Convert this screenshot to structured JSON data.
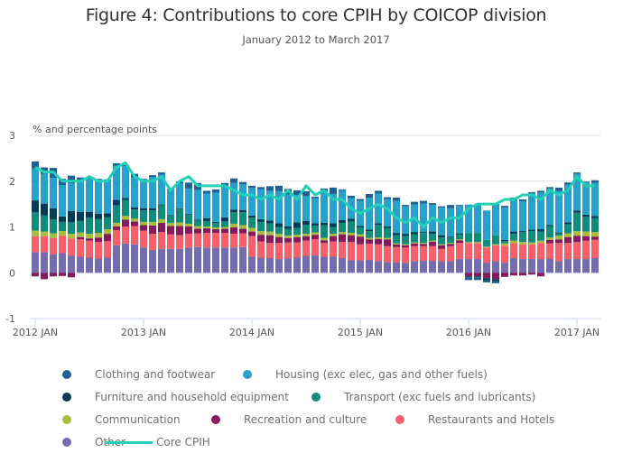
{
  "chart_data": {
    "type": "bar",
    "stacked": true,
    "title": "Figure 4: Contributions to core CPIH by COICOP division",
    "subtitle": "January 2012 to March 2017",
    "ylabel": "% and percentage points",
    "xlabel": "",
    "ylim": [
      -1,
      3
    ],
    "yticks": [
      -1,
      0,
      1,
      2,
      3
    ],
    "xtick_labels": [
      "2012 JAN",
      "2013 JAN",
      "2014 JAN",
      "2015 JAN",
      "2016 JAN",
      "2017 JAN"
    ],
    "xtick_indices": [
      0,
      12,
      24,
      36,
      48,
      60
    ],
    "grid": true,
    "legend_position": "bottom",
    "categories": [
      "2012 JAN",
      "2012 FEB",
      "2012 MAR",
      "2012 APR",
      "2012 MAY",
      "2012 JUN",
      "2012 JUL",
      "2012 AUG",
      "2012 SEP",
      "2012 OCT",
      "2012 NOV",
      "2012 DEC",
      "2013 JAN",
      "2013 FEB",
      "2013 MAR",
      "2013 APR",
      "2013 MAY",
      "2013 JUN",
      "2013 JUL",
      "2013 AUG",
      "2013 SEP",
      "2013 OCT",
      "2013 NOV",
      "2013 DEC",
      "2014 JAN",
      "2014 FEB",
      "2014 MAR",
      "2014 APR",
      "2014 MAY",
      "2014 JUN",
      "2014 JUL",
      "2014 AUG",
      "2014 SEP",
      "2014 OCT",
      "2014 NOV",
      "2014 DEC",
      "2015 JAN",
      "2015 FEB",
      "2015 MAR",
      "2015 APR",
      "2015 MAY",
      "2015 JUN",
      "2015 JUL",
      "2015 AUG",
      "2015 SEP",
      "2015 OCT",
      "2015 NOV",
      "2015 DEC",
      "2016 JAN",
      "2016 FEB",
      "2016 MAR",
      "2016 APR",
      "2016 MAY",
      "2016 JUN",
      "2016 JUL",
      "2016 AUG",
      "2016 SEP",
      "2016 OCT",
      "2016 NOV",
      "2016 DEC",
      "2017 JAN",
      "2017 FEB",
      "2017 MAR"
    ],
    "series": [
      {
        "name": "Other",
        "color": "#746cb1",
        "values": [
          0.45,
          0.45,
          0.4,
          0.43,
          0.37,
          0.35,
          0.33,
          0.31,
          0.33,
          0.6,
          0.64,
          0.62,
          0.55,
          0.5,
          0.52,
          0.52,
          0.52,
          0.55,
          0.56,
          0.55,
          0.55,
          0.55,
          0.55,
          0.56,
          0.35,
          0.33,
          0.32,
          0.3,
          0.31,
          0.33,
          0.37,
          0.38,
          0.35,
          0.35,
          0.32,
          0.27,
          0.27,
          0.28,
          0.25,
          0.23,
          0.23,
          0.22,
          0.25,
          0.26,
          0.26,
          0.25,
          0.25,
          0.3,
          0.3,
          0.3,
          0.22,
          0.25,
          0.22,
          0.32,
          0.3,
          0.3,
          0.3,
          0.31,
          0.25,
          0.3,
          0.3,
          0.3,
          0.32
        ]
      },
      {
        "name": "Restaurants and Hotels",
        "color": "#f66068",
        "values": [
          0.35,
          0.35,
          0.36,
          0.38,
          0.38,
          0.38,
          0.37,
          0.36,
          0.36,
          0.33,
          0.37,
          0.4,
          0.37,
          0.35,
          0.37,
          0.32,
          0.3,
          0.3,
          0.3,
          0.32,
          0.32,
          0.32,
          0.3,
          0.3,
          0.45,
          0.35,
          0.33,
          0.35,
          0.35,
          0.33,
          0.33,
          0.35,
          0.3,
          0.33,
          0.35,
          0.4,
          0.35,
          0.35,
          0.37,
          0.35,
          0.33,
          0.33,
          0.33,
          0.32,
          0.32,
          0.27,
          0.33,
          0.35,
          0.35,
          0.35,
          0.33,
          0.35,
          0.37,
          0.33,
          0.32,
          0.32,
          0.35,
          0.33,
          0.4,
          0.35,
          0.37,
          0.4,
          0.4
        ]
      },
      {
        "name": "Recreation and culture",
        "color": "#871a5b",
        "values": [
          -0.08,
          -0.14,
          -0.08,
          -0.07,
          -0.1,
          0.05,
          0.05,
          0.1,
          0.16,
          0.08,
          0.15,
          0.1,
          0.12,
          0.18,
          0.2,
          0.18,
          0.2,
          0.16,
          0.1,
          0.1,
          0.08,
          0.09,
          0.14,
          0.1,
          0.1,
          0.15,
          0.17,
          0.13,
          0.1,
          0.12,
          0.1,
          0.1,
          0.06,
          0.12,
          0.17,
          0.15,
          0.17,
          0.1,
          0.12,
          0.15,
          0.06,
          0.05,
          0.06,
          0.05,
          0.1,
          0.08,
          0.05,
          0.06,
          -0.08,
          -0.08,
          -0.12,
          -0.14,
          -0.09,
          -0.06,
          -0.06,
          -0.04,
          -0.08,
          0.08,
          0.08,
          0.13,
          0.14,
          0.1,
          0.07
        ]
      },
      {
        "name": "Communication",
        "color": "#a8bd3a",
        "values": [
          0.12,
          0.1,
          0.1,
          0.1,
          0.1,
          0.1,
          0.1,
          0.1,
          0.1,
          0.08,
          0.08,
          0.06,
          0.07,
          0.08,
          0.08,
          0.07,
          0.08,
          0.06,
          0.06,
          0.04,
          0.04,
          0.04,
          0.08,
          0.08,
          0.08,
          0.08,
          0.08,
          0.07,
          0.05,
          0.05,
          0.05,
          0.05,
          0.05,
          0.05,
          0.05,
          0.05,
          0.05,
          0.03,
          0.03,
          0.03,
          0.02,
          0.02,
          0.02,
          0.02,
          0.02,
          0.02,
          0.02,
          0.02,
          0.02,
          0.02,
          0.02,
          0.02,
          0.05,
          0.05,
          0.05,
          0.04,
          0.05,
          0.05,
          0.08,
          0.08,
          0.1,
          0.1,
          0.1
        ]
      },
      {
        "name": "Transport (exc fuels and lubricants)",
        "color": "#118c7b",
        "values": [
          0.4,
          0.35,
          0.3,
          0.2,
          0.25,
          0.25,
          0.35,
          0.3,
          0.26,
          0.38,
          0.35,
          0.2,
          0.25,
          0.25,
          0.3,
          0.15,
          0.28,
          0.2,
          0.12,
          0.12,
          0.1,
          0.12,
          0.25,
          0.28,
          0.22,
          0.2,
          0.18,
          0.15,
          0.15,
          0.15,
          0.2,
          0.15,
          0.28,
          0.15,
          0.2,
          0.25,
          0.15,
          0.15,
          0.28,
          0.22,
          0.18,
          0.18,
          0.18,
          0.22,
          0.15,
          0.15,
          0.12,
          0.1,
          0.2,
          0.2,
          0.15,
          0.2,
          0.05,
          0.15,
          0.22,
          0.25,
          0.2,
          0.25,
          0.05,
          0.2,
          0.4,
          0.32,
          0.3
        ]
      },
      {
        "name": "Furniture and household equipment",
        "color": "#003c57",
        "values": [
          0.26,
          0.26,
          0.25,
          0.12,
          0.25,
          0.2,
          0.13,
          0.12,
          0.09,
          0.12,
          0.04,
          0.05,
          0.05,
          0.05,
          0.02,
          0.02,
          0.02,
          0.02,
          0.02,
          0.06,
          0.02,
          0.09,
          0.06,
          0.05,
          0.05,
          0.06,
          0.06,
          0.08,
          0.05,
          0.12,
          0.08,
          0.05,
          0.05,
          0.08,
          0.06,
          0.06,
          0.03,
          0.03,
          0.03,
          0.03,
          0.05,
          0.05,
          0.05,
          0.02,
          0.05,
          0.05,
          0.02,
          0.03,
          -0.02,
          -0.02,
          -0.05,
          -0.04,
          0.03,
          0.05,
          0.02,
          0.03,
          0.05,
          0.02,
          0.02,
          0.04,
          0.05,
          0.05,
          0.05
        ]
      },
      {
        "name": "Housing (exc elec, gas and other fuels)",
        "color": "#27a0cc",
        "values": [
          0.7,
          0.65,
          0.66,
          0.68,
          0.6,
          0.7,
          0.72,
          0.72,
          0.72,
          0.75,
          0.7,
          0.65,
          0.62,
          0.68,
          0.65,
          0.55,
          0.55,
          0.55,
          0.65,
          0.54,
          0.64,
          0.65,
          0.58,
          0.56,
          0.6,
          0.65,
          0.65,
          0.7,
          0.7,
          0.6,
          0.55,
          0.55,
          0.7,
          0.64,
          0.65,
          0.45,
          0.55,
          0.7,
          0.65,
          0.6,
          0.7,
          0.6,
          0.6,
          0.62,
          0.58,
          0.6,
          0.62,
          0.6,
          0.62,
          0.62,
          0.64,
          0.7,
          0.7,
          0.7,
          0.65,
          0.8,
          0.8,
          0.8,
          0.9,
          0.82,
          0.8,
          0.7,
          0.72
        ]
      },
      {
        "name": "Clothing and footwear",
        "color": "#206095",
        "values": [
          0.15,
          0.14,
          0.22,
          0.14,
          0.17,
          0.05,
          0.03,
          0.04,
          0.02,
          0.05,
          0.02,
          0.08,
          0.02,
          0.04,
          0.05,
          0.02,
          0.04,
          0.13,
          0.15,
          0.06,
          0.07,
          0.1,
          0.1,
          0.05,
          0.05,
          0.05,
          0.1,
          0.12,
          0.12,
          0.1,
          0.1,
          0.03,
          0.05,
          0.14,
          0.02,
          0.05,
          0.04,
          0.08,
          0.06,
          0.04,
          0.07,
          0.03,
          0.06,
          0.06,
          0.04,
          0.03,
          0.07,
          0.02,
          -0.06,
          -0.06,
          -0.04,
          -0.05,
          0.04,
          0.04,
          0.04,
          0.02,
          0.04,
          0.03,
          0.08,
          0.05,
          0.03,
          0.02,
          0.06
        ]
      }
    ],
    "line_series": {
      "name": "Core CPIH",
      "color": "#22d0b6",
      "values": [
        2.3,
        2.2,
        2.2,
        2.0,
        2.0,
        2.0,
        2.1,
        2.0,
        2.0,
        2.3,
        2.4,
        2.1,
        2.0,
        2.0,
        2.1,
        1.8,
        2.0,
        2.1,
        1.9,
        1.9,
        1.9,
        1.9,
        1.8,
        1.7,
        1.7,
        1.6,
        1.7,
        1.6,
        1.8,
        1.6,
        1.9,
        1.7,
        1.8,
        1.6,
        1.6,
        1.4,
        1.3,
        1.4,
        1.5,
        1.4,
        1.2,
        1.1,
        1.2,
        1.0,
        1.2,
        1.1,
        1.2,
        1.2,
        1.4,
        1.5,
        1.5,
        1.5,
        1.6,
        1.6,
        1.7,
        1.7,
        1.6,
        1.8,
        1.7,
        1.8,
        2.1,
        1.9,
        1.9
      ]
    }
  },
  "legend": {
    "items": [
      {
        "label": "Clothing and footwear",
        "color": "#206095",
        "type": "dot"
      },
      {
        "label": "Housing (exc elec, gas and other fuels)",
        "color": "#27a0cc",
        "type": "dot"
      },
      {
        "label": "Furniture and household equipment",
        "color": "#003c57",
        "type": "dot"
      },
      {
        "label": "Transport (exc fuels and lubricants)",
        "color": "#118c7b",
        "type": "dot"
      },
      {
        "label": "Communication",
        "color": "#a8bd3a",
        "type": "dot"
      },
      {
        "label": "Recreation and culture",
        "color": "#871a5b",
        "type": "dot"
      },
      {
        "label": "Restaurants and Hotels",
        "color": "#f66068",
        "type": "dot"
      },
      {
        "label": "Other",
        "color": "#746cb1",
        "type": "dot"
      },
      {
        "label": "Core CPIH",
        "color": "#22d0b6",
        "type": "line"
      }
    ]
  }
}
